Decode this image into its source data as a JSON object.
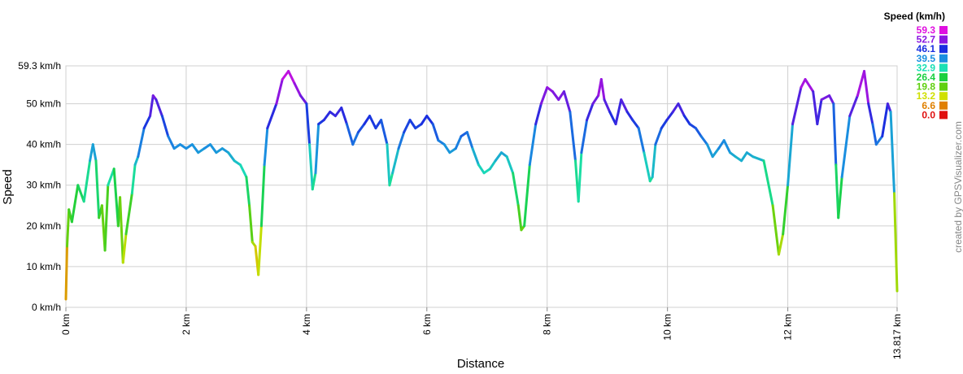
{
  "chart_data": {
    "type": "line",
    "x_label": "Distance",
    "y_label": "Speed",
    "legend_title": "Speed (km/h)",
    "credit": "created by GPSVisualizer.com",
    "grid": true,
    "xlim": [
      0,
      13.817
    ],
    "ylim": [
      0,
      59.3
    ],
    "xticks": [
      {
        "value": 0,
        "label": "0 km"
      },
      {
        "value": 2,
        "label": "2 km"
      },
      {
        "value": 4,
        "label": "4 km"
      },
      {
        "value": 6,
        "label": "6 km"
      },
      {
        "value": 8,
        "label": "8 km"
      },
      {
        "value": 10,
        "label": "10 km"
      },
      {
        "value": 12,
        "label": "12 km"
      },
      {
        "value": 13.817,
        "label": "13.817 km"
      }
    ],
    "yticks": [
      {
        "value": 0,
        "label": "0 km/h"
      },
      {
        "value": 10,
        "label": "10 km/h"
      },
      {
        "value": 20,
        "label": "20 km/h"
      },
      {
        "value": 30,
        "label": "30 km/h"
      },
      {
        "value": 40,
        "label": "40 km/h"
      },
      {
        "value": 50,
        "label": "50 km/h"
      },
      {
        "value": 59.3,
        "label": "59.3 km/h"
      }
    ],
    "color_scale": [
      {
        "value": 59.3,
        "color": "#e010e0"
      },
      {
        "value": 52.7,
        "color": "#8a16e0"
      },
      {
        "value": 46.1,
        "color": "#1a2ee0"
      },
      {
        "value": 39.5,
        "color": "#1a8ee0"
      },
      {
        "value": 32.9,
        "color": "#1ae0b4"
      },
      {
        "value": 26.4,
        "color": "#1ad040"
      },
      {
        "value": 19.8,
        "color": "#60d010"
      },
      {
        "value": 13.2,
        "color": "#d0e000"
      },
      {
        "value": 6.6,
        "color": "#e08000"
      },
      {
        "value": 0,
        "label": "0.0",
        "color": "#e01010"
      }
    ],
    "x": [
      0,
      0.02,
      0.05,
      0.1,
      0.2,
      0.3,
      0.4,
      0.45,
      0.5,
      0.55,
      0.6,
      0.65,
      0.7,
      0.8,
      0.87,
      0.9,
      0.95,
      1.0,
      1.1,
      1.15,
      1.2,
      1.3,
      1.4,
      1.45,
      1.5,
      1.6,
      1.7,
      1.8,
      1.9,
      2.0,
      2.1,
      2.2,
      2.3,
      2.4,
      2.5,
      2.6,
      2.7,
      2.8,
      2.9,
      3.0,
      3.05,
      3.1,
      3.15,
      3.2,
      3.25,
      3.3,
      3.35,
      3.5,
      3.6,
      3.7,
      3.8,
      3.9,
      4.0,
      4.05,
      4.1,
      4.15,
      4.2,
      4.29,
      4.39,
      4.48,
      4.58,
      4.67,
      4.77,
      4.86,
      4.96,
      5.05,
      5.15,
      5.24,
      5.34,
      5.38,
      5.43,
      5.53,
      5.62,
      5.72,
      5.81,
      5.91,
      6.0,
      6.1,
      6.19,
      6.29,
      6.38,
      6.48,
      6.57,
      6.67,
      6.76,
      6.86,
      6.95,
      7.05,
      7.14,
      7.24,
      7.33,
      7.43,
      7.52,
      7.57,
      7.62,
      7.71,
      7.81,
      7.9,
      8.0,
      8.09,
      8.19,
      8.28,
      8.38,
      8.47,
      8.52,
      8.57,
      8.66,
      8.76,
      8.85,
      8.9,
      8.95,
      9.04,
      9.14,
      9.23,
      9.33,
      9.42,
      9.52,
      9.61,
      9.71,
      9.75,
      9.8,
      9.9,
      9.99,
      10.09,
      10.18,
      10.28,
      10.37,
      10.47,
      10.56,
      10.66,
      10.75,
      10.85,
      10.94,
      11.04,
      11.13,
      11.23,
      11.32,
      11.42,
      11.6,
      11.75,
      11.85,
      11.92,
      12.0,
      12.08,
      12.22,
      12.29,
      12.42,
      12.49,
      12.56,
      12.69,
      12.76,
      12.8,
      12.84,
      12.9,
      13.03,
      13.16,
      13.27,
      13.34,
      13.41,
      13.47,
      13.57,
      13.66,
      13.71,
      13.77,
      13.817
    ],
    "values": [
      2,
      15,
      24,
      21,
      30,
      26,
      36,
      40,
      36,
      22,
      25,
      14,
      30,
      34,
      20,
      27,
      11,
      18,
      28,
      35,
      37,
      44,
      47,
      52,
      51,
      47,
      42,
      39,
      40,
      39,
      40,
      38,
      39,
      40,
      38,
      39,
      38,
      36,
      35,
      32,
      25,
      16,
      15,
      8,
      20,
      35,
      44,
      50,
      56,
      58,
      55,
      52,
      50,
      40,
      29,
      33,
      45,
      46,
      48,
      47,
      49,
      45,
      40,
      43,
      45,
      47,
      44,
      46,
      40,
      30,
      33,
      39,
      43,
      46,
      44,
      45,
      47,
      45,
      41,
      40,
      38,
      39,
      42,
      43,
      39,
      35,
      33,
      34,
      36,
      38,
      37,
      33,
      25,
      19,
      20,
      35,
      45,
      50,
      54,
      53,
      51,
      53,
      48,
      36,
      26,
      38,
      46,
      50,
      52,
      56,
      51,
      48,
      45,
      51,
      48,
      46,
      44,
      38,
      31,
      32,
      40,
      44,
      46,
      48,
      50,
      47,
      45,
      44,
      42,
      40,
      37,
      39,
      41,
      38,
      37,
      36,
      38,
      37,
      36,
      25,
      13,
      18,
      30,
      45,
      54,
      56,
      53,
      45,
      51,
      52,
      50,
      35,
      22,
      32,
      47,
      52,
      58,
      50,
      45,
      40,
      42,
      50,
      48,
      28,
      4
    ]
  }
}
